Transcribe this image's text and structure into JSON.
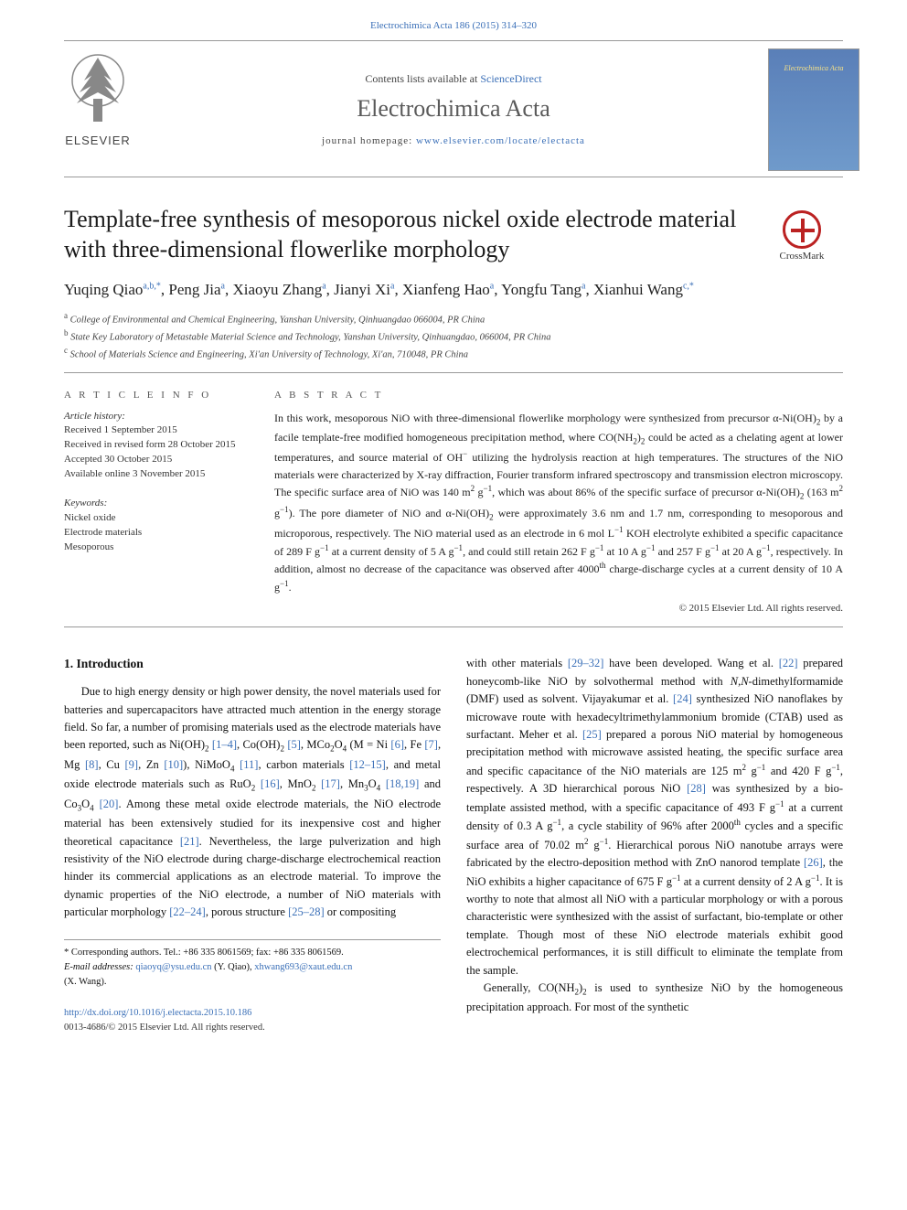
{
  "header": {
    "citation": "Electrochimica Acta 186 (2015) 314–320",
    "contents_prefix": "Contents lists available at ",
    "contents_link": "ScienceDirect",
    "journal_name": "Electrochimica Acta",
    "homepage_prefix": "journal homepage: ",
    "homepage_url": "www.elsevier.com/locate/electacta",
    "publisher_label": "ELSEVIER",
    "cover_label": "Electrochimica Acta"
  },
  "crossmark": {
    "label": "CrossMark"
  },
  "title": "Template-free synthesis of mesoporous nickel oxide electrode material with three-dimensional flowerlike morphology",
  "authors_html": "Yuqing Qiao<sup>a,b,*</sup>, Peng Jia<sup>a</sup>, Xiaoyu Zhang<sup>a</sup>, Jianyi Xi<sup>a</sup>, Xianfeng Hao<sup>a</sup>, Yongfu Tang<sup>a</sup>, Xianhui Wang<sup>c,*</sup>",
  "affiliations": {
    "a": "College of Environmental and Chemical Engineering, Yanshan University, Qinhuangdao 066004, PR China",
    "b": "State Key Laboratory of Metastable Material Science and Technology, Yanshan University, Qinhuangdao, 066004, PR China",
    "c": "School of Materials Science and Engineering, Xi'an University of Technology, Xi'an, 710048, PR China"
  },
  "article_info": {
    "label": "A R T I C L E  I N F O",
    "history_label": "Article history:",
    "history": [
      "Received 1 September 2015",
      "Received in revised form 28 October 2015",
      "Accepted 30 October 2015",
      "Available online 3 November 2015"
    ],
    "keywords_label": "Keywords:",
    "keywords": [
      "Nickel oxide",
      "Electrode materials",
      "Mesoporous"
    ]
  },
  "abstract": {
    "label": "A B S T R A C T",
    "text_html": "In this work, mesoporous NiO with three-dimensional flowerlike morphology were synthesized from precursor α-Ni(OH)<sub>2</sub> by a facile template-free modified homogeneous precipitation method, where CO(NH<sub>2</sub>)<sub>2</sub> could be acted as a chelating agent at lower temperatures, and source material of OH<sup>−</sup> utilizing the hydrolysis reaction at high temperatures. The structures of the NiO materials were characterized by X-ray diffraction, Fourier transform infrared spectroscopy and transmission electron microscopy. The specific surface area of NiO was 140 m<sup>2</sup> g<sup>−1</sup>, which was about 86% of the specific surface of precursor α-Ni(OH)<sub>2</sub> (163 m<sup>2</sup> g<sup>−1</sup>). The pore diameter of NiO and α-Ni(OH)<sub>2</sub> were approximately 3.6 nm and 1.7 nm, corresponding to mesoporous and microporous, respectively. The NiO material used as an electrode in 6 mol L<sup>−1</sup> KOH electrolyte exhibited a specific capacitance of 289 F g<sup>−1</sup> at a current density of 5 A g<sup>−1</sup>, and could still retain 262 F g<sup>−1</sup> at 10 A g<sup>−1</sup> and 257 F g<sup>−1</sup> at 20 A g<sup>−1</sup>, respectively. In addition, almost no decrease of the capacitance was observed after 4000<sup>th</sup> charge-discharge cycles at a current density of 10 A g<sup>−1</sup>.",
    "copyright": "© 2015 Elsevier Ltd. All rights reserved."
  },
  "body": {
    "section_heading": "1. Introduction",
    "col1_html": "Due to high energy density or high power density, the novel materials used for batteries and supercapacitors have attracted much attention in the energy storage field. So far, a number of promising materials used as the electrode materials have been reported, such as Ni(OH)<sub>2</sub> <span class=\"ref-link\">[1–4]</span>, Co(OH)<sub>2</sub> <span class=\"ref-link\">[5]</span>, MCo<sub>2</sub>O<sub>4</sub> (M = Ni <span class=\"ref-link\">[6]</span>, Fe <span class=\"ref-link\">[7]</span>, Mg <span class=\"ref-link\">[8]</span>, Cu <span class=\"ref-link\">[9]</span>, Zn <span class=\"ref-link\">[10]</span>), NiMoO<sub>4</sub> <span class=\"ref-link\">[11]</span>, carbon materials <span class=\"ref-link\">[12–15]</span>, and metal oxide electrode materials such as RuO<sub>2</sub> <span class=\"ref-link\">[16]</span>, MnO<sub>2</sub> <span class=\"ref-link\">[17]</span>, Mn<sub>3</sub>O<sub>4</sub> <span class=\"ref-link\">[18,19]</span> and Co<sub>3</sub>O<sub>4</sub> <span class=\"ref-link\">[20]</span>. Among these metal oxide electrode materials, the NiO electrode material has been extensively studied for its inexpensive cost and higher theoretical capacitance <span class=\"ref-link\">[21]</span>. Nevertheless, the large pulverization and high resistivity of the NiO electrode during charge-discharge electrochemical reaction hinder its commercial applications as an electrode material. To improve the dynamic properties of the NiO electrode, a number of NiO materials with particular morphology <span class=\"ref-link\">[22–24]</span>, porous structure <span class=\"ref-link\">[25–28]</span> or compositing",
    "col2_html": "with other materials <span class=\"ref-link\">[29–32]</span> have been developed. Wang et al. <span class=\"ref-link\">[22]</span> prepared honeycomb-like NiO by solvothermal method with <i>N,N</i>-dimethylformamide (DMF) used as solvent. Vijayakumar et al. <span class=\"ref-link\">[24]</span> synthesized NiO nanoflakes by microwave route with hexadecyltrimethylammonium bromide (CTAB) used as surfactant. Meher et al. <span class=\"ref-link\">[25]</span> prepared a porous NiO material by homogeneous precipitation method with microwave assisted heating, the specific surface area and specific capacitance of the NiO materials are 125 m<sup>2</sup> g<sup>−1</sup> and 420 F g<sup>−1</sup>, respectively. A 3D hierarchical porous NiO <span class=\"ref-link\">[28]</span> was synthesized by a bio-template assisted method, with a specific capacitance of 493 F g<sup>−1</sup> at a current density of 0.3 A g<sup>−1</sup>, a cycle stability of 96% after 2000<sup>th</sup> cycles and a specific surface area of 70.02 m<sup>2</sup> g<sup>−1</sup>. Hierarchical porous NiO nanotube arrays were fabricated by the electro-deposition method with ZnO nanorod template <span class=\"ref-link\">[26]</span>, the NiO exhibits a higher capacitance of 675 F g<sup>−1</sup> at a current density of 2 A g<sup>−1</sup>. It is worthy to note that almost all NiO with a particular morphology or with a porous characteristic were synthesized with the assist of surfactant, bio-template or other template. Though most of these NiO electrode materials exhibit good electrochemical performances, it is still difficult to eliminate the template from the sample.",
    "col2_p2_html": "Generally, CO(NH<sub>2</sub>)<sub>2</sub> is used to synthesize NiO by the homogeneous precipitation approach. For most of the synthetic"
  },
  "footer": {
    "corr_line": "* Corresponding authors. Tel.: +86 335 8061569; fax: +86 335 8061569.",
    "email_label": "E-mail addresses: ",
    "email1": "qiaoyq@ysu.edu.cn",
    "email1_who": " (Y. Qiao), ",
    "email2": "xhwang693@xaut.edu.cn",
    "email2_who": " (X. Wang).",
    "doi": "http://dx.doi.org/10.1016/j.electacta.2015.10.186",
    "issn": "0013-4686/© 2015 Elsevier Ltd. All rights reserved."
  },
  "colors": {
    "link": "#3a6fb7",
    "rule": "#999999",
    "text": "#111111",
    "muted": "#555555"
  }
}
